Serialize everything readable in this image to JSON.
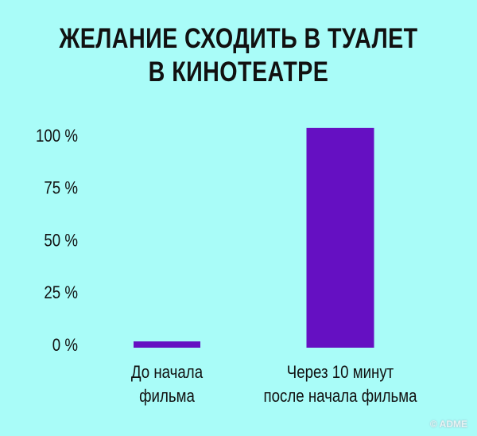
{
  "chart_data": {
    "type": "bar",
    "title_lines": [
      "ЖЕЛАНИЕ СХОДИТЬ В ТУАЛЕТ",
      "В КИНОТЕАТРЕ"
    ],
    "categories": [
      [
        "До начала",
        "фильма"
      ],
      [
        "Через 10 минут",
        "после начала фильма"
      ]
    ],
    "values": [
      3,
      105
    ],
    "yticks": [
      "0 %",
      "25 %",
      "50 %",
      "75 %",
      "100 %"
    ],
    "ytick_values": [
      0,
      25,
      50,
      75,
      100
    ],
    "ylim": [
      0,
      105
    ],
    "grid": false,
    "bar_color": "#6510c2",
    "background": "#a9fcf8"
  },
  "watermark": "© ADME"
}
